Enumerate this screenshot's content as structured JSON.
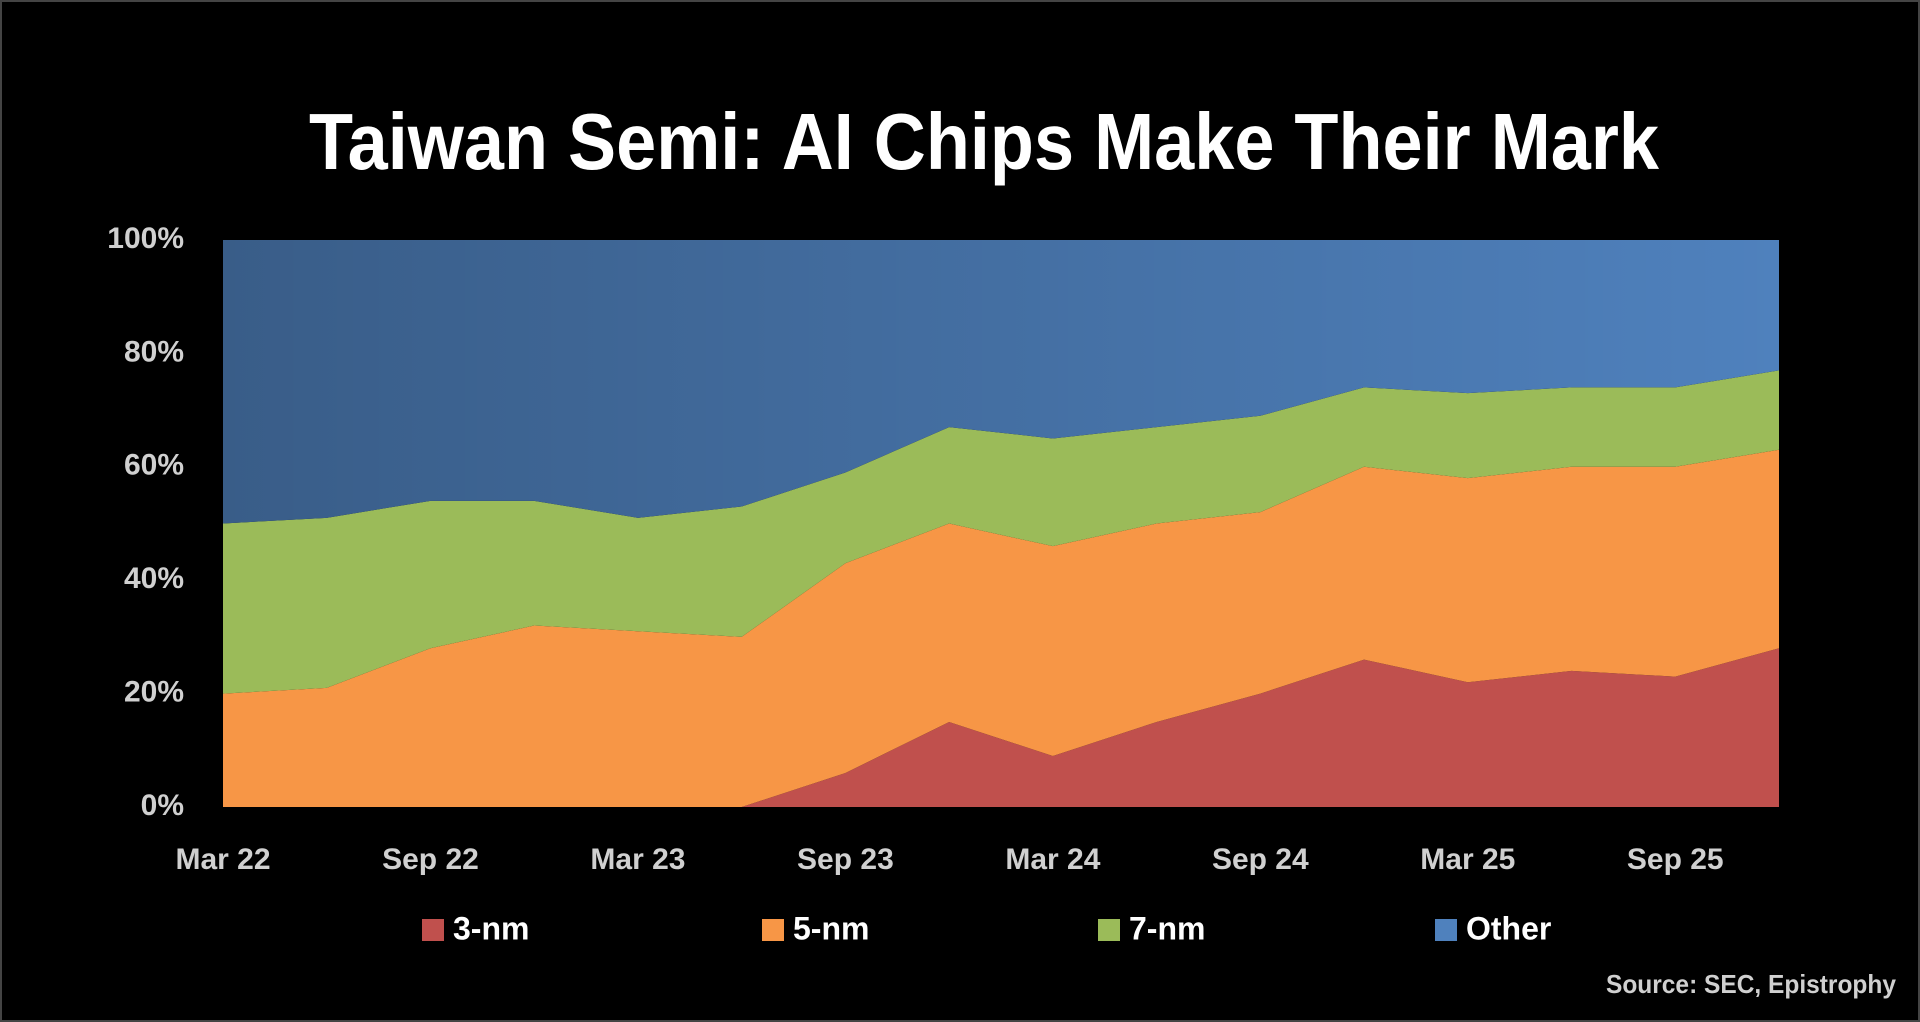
{
  "chart_data": {
    "type": "stacked_area",
    "title": "Taiwan Semi: AI Chips Make Their Mark",
    "source": "Source: SEC, Epistrophy",
    "categories": [
      "Mar 22",
      null,
      "Sep 22",
      null,
      "Mar 23",
      null,
      "Sep 23",
      null,
      "Mar 24",
      null,
      "Sep 24",
      null,
      "Mar 25",
      null,
      "Sep 25",
      null
    ],
    "series": [
      {
        "name": "3-nm",
        "color": "#c0504d",
        "values": [
          0,
          0,
          0,
          0,
          0,
          0,
          6,
          15,
          9,
          15,
          20,
          26,
          22,
          24,
          23,
          28
        ]
      },
      {
        "name": "5-nm",
        "color": "#f79646",
        "values": [
          20,
          21,
          28,
          32,
          31,
          30,
          37,
          35,
          37,
          35,
          32,
          34,
          36,
          36,
          37,
          35
        ]
      },
      {
        "name": "7-nm",
        "color": "#9bbb59",
        "values": [
          30,
          30,
          26,
          22,
          20,
          23,
          16,
          17,
          19,
          17,
          17,
          14,
          15,
          14,
          14,
          14
        ]
      },
      {
        "name": "Other",
        "color": "#4f81bd",
        "values": [
          50,
          49,
          46,
          46,
          49,
          47,
          41,
          33,
          35,
          33,
          31,
          26,
          27,
          26,
          26,
          23
        ]
      }
    ],
    "ylim": [
      0,
      100
    ],
    "yticks": [
      {
        "value": 0,
        "label": "0%"
      },
      {
        "value": 20,
        "label": "20%"
      },
      {
        "value": 40,
        "label": "40%"
      },
      {
        "value": 60,
        "label": "60%"
      },
      {
        "value": 80,
        "label": "80%"
      },
      {
        "value": 100,
        "label": "100%"
      }
    ],
    "grid": false
  }
}
